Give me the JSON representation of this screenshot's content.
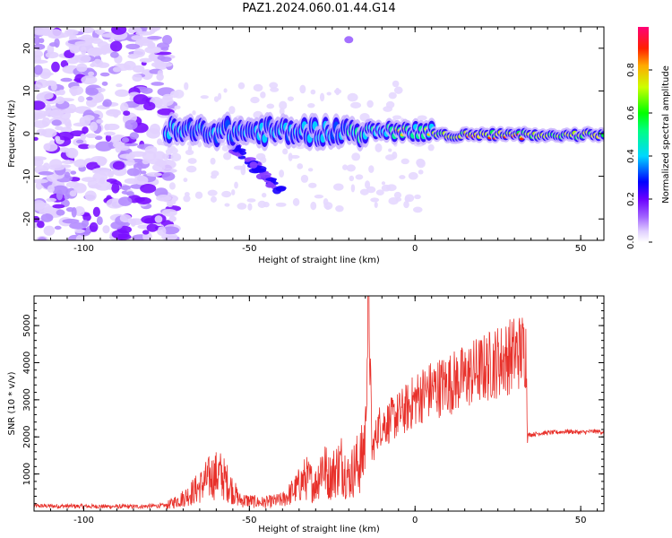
{
  "title": "PAZ1.2024.060.01.44.G14",
  "chart_data": [
    {
      "type": "heatmap",
      "name": "spectrogram",
      "xlabel": "Height of straight line (km)",
      "ylabel": "Frequency (Hz)",
      "xlim": [
        -115,
        57
      ],
      "ylim": [
        -25,
        25
      ],
      "xticks": [
        -100,
        -50,
        0,
        50
      ],
      "yticks": [
        -20,
        -10,
        0,
        10,
        20
      ],
      "colorbar": {
        "label": "Normalized spectral amplitude",
        "range": [
          0,
          1
        ],
        "ticks": [
          0.0,
          0.2,
          0.4,
          0.6,
          0.8
        ],
        "colormap": [
          "#ffffff",
          "#c9b3ff",
          "#7a00ff",
          "#0000ff",
          "#00e5ff",
          "#00ff00",
          "#ffff00",
          "#ff0000",
          "#ff00aa"
        ]
      },
      "ridge": {
        "start_height_km": -75,
        "end_height_km": 57,
        "center_frequency_hz": 0.5,
        "trailing_branch": {
          "from_height_km": -50,
          "to_height_km": -40,
          "frequency_hz": -13
        }
      },
      "noise_region": {
        "from_height_km": -115,
        "to_height_km": -75
      }
    },
    {
      "type": "line",
      "name": "snr",
      "xlabel": "Height of straight line (km)",
      "ylabel": "SNR (10 * v/v)",
      "xlim": [
        -115,
        57
      ],
      "ylim": [
        0,
        5800
      ],
      "xticks": [
        -100,
        -50,
        0,
        50
      ],
      "yticks": [
        1000,
        2000,
        3000,
        4000,
        5000
      ],
      "color": "#e8302a",
      "series": [
        {
          "x": [
            -115,
            -100,
            -85,
            -75,
            -70,
            -65,
            -62,
            -59,
            -56,
            -53,
            -50,
            -47,
            -44,
            -40,
            -36,
            -33,
            -30,
            -28,
            -26,
            -24,
            -22,
            -20,
            -18,
            -16,
            -15,
            -14,
            -13,
            -11,
            -8,
            -5,
            -2,
            0,
            3,
            6,
            9,
            12,
            15,
            18,
            21,
            24,
            27,
            30,
            33,
            33.5,
            34,
            38,
            42,
            46,
            50,
            54,
            57
          ],
          "y": [
            140,
            130,
            120,
            150,
            350,
            650,
            900,
            1000,
            700,
            300,
            280,
            230,
            250,
            300,
            600,
            900,
            700,
            1300,
            900,
            1100,
            1300,
            900,
            1200,
            1400,
            2100,
            5800,
            1600,
            2300,
            2400,
            2600,
            2800,
            3000,
            3200,
            3300,
            3400,
            3500,
            3600,
            3750,
            3850,
            4000,
            4100,
            4250,
            4350,
            4300,
            2050,
            2100,
            2120,
            2150,
            2120,
            2150,
            2130
          ]
        }
      ]
    }
  ]
}
